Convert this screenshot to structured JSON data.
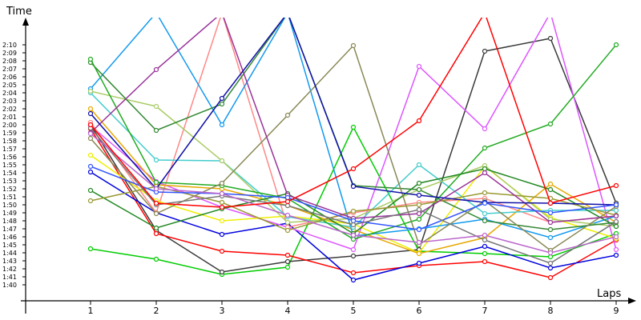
{
  "chart_data": {
    "type": "line",
    "title": "",
    "xlabel": "Laps",
    "ylabel": "Time",
    "categories": [
      "1",
      "2",
      "3",
      "4",
      "5",
      "6",
      "7",
      "8",
      "9"
    ],
    "y_unit": "m:ss",
    "ylim": [
      "1:40",
      "2:10"
    ],
    "yticks": [
      "1:40",
      "1:41",
      "1:42",
      "1:43",
      "1:44",
      "1:45",
      "1:46",
      "1:47",
      "1:48",
      "1:49",
      "1:50",
      "1:51",
      "1:52",
      "1:53",
      "1:54",
      "1:55",
      "1:56",
      "1:57",
      "1:58",
      "1:59",
      "2:00",
      "2:01",
      "2:02",
      "2:03",
      "2:04",
      "2:05",
      "2:06",
      "2:07",
      "2:08",
      "2:09",
      "2:10"
    ],
    "grid": false,
    "legend": "none",
    "series": [
      {
        "color": "#00cc00",
        "values": [
          "1:44.5",
          "1:43.2",
          "1:41.3",
          "1:42.2",
          "1:59.7",
          "1:44.2",
          "1:43.9",
          "1:43.5",
          "1:46.4"
        ]
      },
      {
        "color": "#3a3a3a",
        "values": [
          "2:00.0",
          "1:46.8",
          "1:41.6",
          "1:42.9",
          "1:43.6",
          "1:44.4",
          "2:09.2",
          "2:10.8",
          "1:50.2"
        ]
      },
      {
        "color": "#ff0000",
        "values": [
          "1:59.5",
          "1:46.4",
          "1:44.2",
          "1:43.7",
          "1:41.5",
          "1:42.4",
          "1:42.9",
          "1:40.9",
          "1:45.6"
        ]
      },
      {
        "color": "#0000dd",
        "values": [
          "1:54.1",
          "1:49.0",
          "1:46.3",
          "1:47.7",
          "1:40.6",
          "1:42.7",
          "1:44.8",
          "1:42.1",
          "1:43.7"
        ]
      },
      {
        "color": "#dd55ff",
        "values": [
          "1:59.9",
          "1:52.9",
          "1:49.7",
          "1:47.2",
          "1:44.4",
          "2:07.3",
          "1:59.5",
          "2:14.0",
          "1:44.4"
        ]
      },
      {
        "color": "#ff8888",
        "values": [
          "2:00.3",
          "1:49.0",
          "2:14.0",
          "1:47.2",
          "1:49.0",
          "1:50.3",
          "1:50.8",
          "1:47.8",
          "1:48.6"
        ]
      },
      {
        "color": "#eeee00",
        "values": [
          "1:56.2",
          "1:50.5",
          "1:48.0",
          "1:48.6",
          "1:47.6",
          "1:44.0",
          "1:54.8",
          "1:48.4",
          "1:45.8"
        ]
      },
      {
        "color": "#e6a800",
        "values": [
          "2:02.0",
          "1:52.5",
          "1:52.0",
          "1:49.9",
          "1:46.9",
          "1:43.9",
          "1:45.9",
          "1:52.6",
          "1:47.8"
        ]
      },
      {
        "color": "#1199ee",
        "values": [
          "2:04.5",
          "2:14.0",
          "2:00.0",
          "2:14.0",
          "1:46.1",
          "1:47.0",
          "1:48.2",
          "1:45.9",
          "1:48.6"
        ]
      },
      {
        "color": "#44cccc",
        "values": [
          "2:04.0",
          "1:55.6",
          "1:55.5",
          "1:48.5",
          "1:47.2",
          "1:55.0",
          "1:48.9",
          "1:49.3",
          "1:49.3"
        ]
      },
      {
        "color": "#aacc66",
        "values": [
          "2:04.2",
          "2:02.3",
          "1:55.5",
          "1:47.8",
          "1:48.3",
          "1:51.9",
          "1:54.9",
          "1:48.2",
          "1:47.3"
        ]
      },
      {
        "color": "#338833",
        "values": [
          "2:07.8",
          "1:59.3",
          "2:02.6",
          "2:14.0",
          "1:52.4",
          "1:51.9",
          "1:48.0",
          "1:46.9",
          "1:47.8"
        ]
      },
      {
        "color": "#22aa22",
        "values": [
          "2:08.2",
          "1:52.8",
          "1:52.4",
          "1:50.8",
          "1:45.7",
          "1:48.2",
          "1:57.1",
          "2:00.1",
          "2:10.0"
        ]
      },
      {
        "color": "#228822",
        "values": [
          "1:51.8",
          "1:47.1",
          "1:49.5",
          "1:51.4",
          "1:46.4",
          "1:52.7",
          "1:54.5",
          "1:51.9",
          "1:47.3"
        ]
      },
      {
        "color": "#999933",
        "values": [
          "1:50.5",
          "1:52.3",
          "1:50.3",
          "1:46.8",
          "1:49.2",
          "1:50.0",
          "1:51.5",
          "1:50.8",
          "1:48.7"
        ]
      },
      {
        "color": "#888855",
        "values": [
          "1:58.3",
          "1:48.9",
          "1:52.7",
          "2:01.2",
          "2:09.9",
          "1:45.0",
          "1:50.5",
          "1:44.3",
          "1:49.8"
        ]
      },
      {
        "color": "#993399",
        "values": [
          "1:59.0",
          "2:06.9",
          "2:14.0",
          "1:51.2",
          "1:48.3",
          "1:48.9",
          "1:54.0",
          "1:47.8",
          "1:48.6"
        ]
      },
      {
        "color": "#1111aa",
        "values": [
          "2:01.4",
          "1:52.0",
          "2:03.3",
          "2:14.0",
          "1:52.3",
          "1:51.2",
          "1:50.3",
          "1:50.2",
          "1:50.0"
        ]
      },
      {
        "color": "#3355ff",
        "values": [
          "1:54.8",
          "1:51.6",
          "1:51.4",
          "1:50.9",
          "1:48.0",
          "1:46.9",
          "1:50.2",
          "1:49.0",
          "1:50.0"
        ]
      },
      {
        "color": "#777777",
        "values": [
          "1:59.6",
          "1:50.0",
          "1:51.1",
          "1:49.9",
          "1:47.5",
          "1:49.4",
          "1:45.6",
          "1:42.7",
          "1:47.9"
        ]
      },
      {
        "color": "#bb66cc",
        "values": [
          "1:58.9",
          "1:52.0",
          "1:51.4",
          "1:48.7",
          "1:46.2",
          "1:45.3",
          "1:46.2",
          "1:44.0",
          "1:46.0"
        ]
      },
      {
        "color": "#ff0000",
        "values": [
          "2:00.0",
          "1:50.2",
          "1:49.7",
          "1:50.4",
          "1:54.5",
          "2:00.5",
          "2:14.0",
          "1:50.2",
          "1:52.4"
        ]
      }
    ]
  }
}
